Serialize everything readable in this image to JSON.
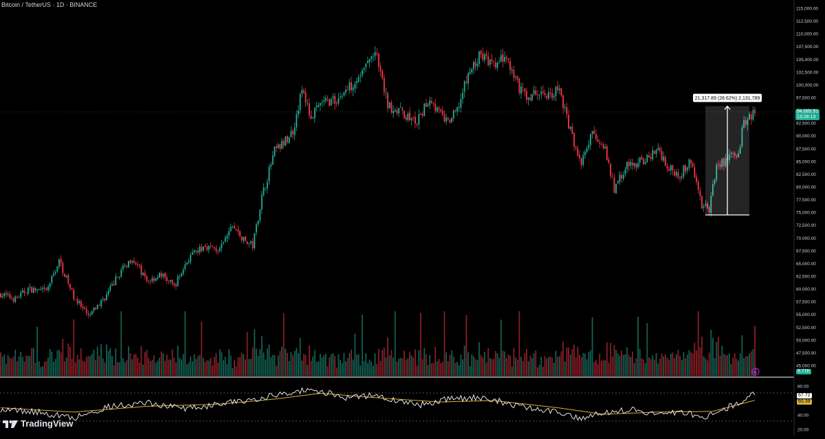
{
  "header": {
    "title": "Bitcoin / TetherUS · 1D · BINANCE"
  },
  "brand": {
    "name": "TradingView"
  },
  "colors": {
    "up": "#22ab94",
    "down": "#f23645",
    "rsi": "#e6e6e6",
    "rsi_ma": "#d8b23a",
    "bg": "#000000"
  },
  "last_price": {
    "value": "94,685.91",
    "countdown": "13:28:13"
  },
  "volume_label": "8.71K",
  "rsi_labels": {
    "rsi": "67.72",
    "ma": "60.39"
  },
  "measure": {
    "label": "21,317.89 (28.62%) 2,131,789",
    "from": 74500,
    "to": 95818
  },
  "chart_data": {
    "type": "candlestick",
    "title": "Bitcoin / TetherUS · 1D · BINANCE",
    "price_axis": {
      "ticks": [
        "115,000.00",
        "112,500.00",
        "110,000.00",
        "107,500.00",
        "105,000.00",
        "102,500.00",
        "100,000.00",
        "97,500.00",
        "95,000.00",
        "92,500.00",
        "90,000.00",
        "87,500.00",
        "85,000.00",
        "82,500.00",
        "80,000.00",
        "77,500.00",
        "75,000.00",
        "72,500.00",
        "70,000.00",
        "67,500.00",
        "65,000.00",
        "62,500.00",
        "60,000.00",
        "57,500.00",
        "55,000.00",
        "52,500.00",
        "50,000.00",
        "47,500.00",
        "45,000.00"
      ],
      "range": [
        45000,
        115000
      ]
    },
    "rsi_axis": {
      "ticks": [
        "80.00",
        "60.00",
        "40.00",
        "20.00"
      ],
      "range": [
        20,
        80
      ]
    },
    "price_path": [
      [
        0,
        59000
      ],
      [
        8,
        58000
      ],
      [
        15,
        60000
      ],
      [
        25,
        59500
      ],
      [
        32,
        65500
      ],
      [
        40,
        58500
      ],
      [
        48,
        54500
      ],
      [
        58,
        58800
      ],
      [
        65,
        63000
      ],
      [
        72,
        66200
      ],
      [
        80,
        61500
      ],
      [
        88,
        62800
      ],
      [
        95,
        60500
      ],
      [
        103,
        66000
      ],
      [
        112,
        68500
      ],
      [
        120,
        67500
      ],
      [
        127,
        72500
      ],
      [
        133,
        69500
      ],
      [
        138,
        68500
      ],
      [
        143,
        78000
      ],
      [
        150,
        87000
      ],
      [
        155,
        88500
      ],
      [
        160,
        91000
      ],
      [
        165,
        99000
      ],
      [
        170,
        93500
      ],
      [
        176,
        96500
      ],
      [
        184,
        97000
      ],
      [
        190,
        99200
      ],
      [
        198,
        102500
      ],
      [
        205,
        106500
      ],
      [
        212,
        96000
      ],
      [
        220,
        94500
      ],
      [
        228,
        92500
      ],
      [
        235,
        97500
      ],
      [
        240,
        94500
      ],
      [
        245,
        92500
      ],
      [
        250,
        95000
      ],
      [
        256,
        102000
      ],
      [
        263,
        106000
      ],
      [
        270,
        103500
      ],
      [
        276,
        105500
      ],
      [
        282,
        100500
      ],
      [
        288,
        97500
      ],
      [
        295,
        98500
      ],
      [
        300,
        98000
      ],
      [
        306,
        99000
      ],
      [
        312,
        91000
      ],
      [
        318,
        84500
      ],
      [
        324,
        90500
      ],
      [
        330,
        88500
      ],
      [
        336,
        79500
      ],
      [
        342,
        84000
      ],
      [
        348,
        84500
      ],
      [
        354,
        85500
      ],
      [
        360,
        87500
      ],
      [
        366,
        83500
      ],
      [
        372,
        82500
      ],
      [
        378,
        85000
      ],
      [
        384,
        76500
      ],
      [
        388,
        75500
      ],
      [
        392,
        84000
      ],
      [
        398,
        85500
      ],
      [
        404,
        87000
      ],
      [
        407,
        92500
      ],
      [
        410,
        94000
      ],
      [
        413,
        94700
      ]
    ],
    "rsi_path": [
      [
        0,
        48
      ],
      [
        20,
        44
      ],
      [
        40,
        36
      ],
      [
        60,
        52
      ],
      [
        80,
        57
      ],
      [
        100,
        49
      ],
      [
        120,
        55
      ],
      [
        140,
        63
      ],
      [
        150,
        67
      ],
      [
        165,
        74
      ],
      [
        180,
        70
      ],
      [
        190,
        64
      ],
      [
        205,
        68
      ],
      [
        215,
        60
      ],
      [
        230,
        54
      ],
      [
        245,
        62
      ],
      [
        260,
        64
      ],
      [
        275,
        58
      ],
      [
        290,
        49
      ],
      [
        305,
        44
      ],
      [
        318,
        36
      ],
      [
        330,
        44
      ],
      [
        345,
        47
      ],
      [
        360,
        41
      ],
      [
        375,
        44
      ],
      [
        385,
        36
      ],
      [
        392,
        45
      ],
      [
        400,
        52
      ],
      [
        410,
        66
      ],
      [
        413,
        67.7
      ]
    ],
    "rsi_ma_path": [
      [
        0,
        50
      ],
      [
        40,
        44
      ],
      [
        80,
        52
      ],
      [
        120,
        55
      ],
      [
        150,
        62
      ],
      [
        175,
        70
      ],
      [
        205,
        64
      ],
      [
        240,
        58
      ],
      [
        270,
        60
      ],
      [
        305,
        50
      ],
      [
        330,
        41
      ],
      [
        360,
        44
      ],
      [
        390,
        45
      ],
      [
        413,
        60.4
      ]
    ],
    "candle_count": 414
  }
}
